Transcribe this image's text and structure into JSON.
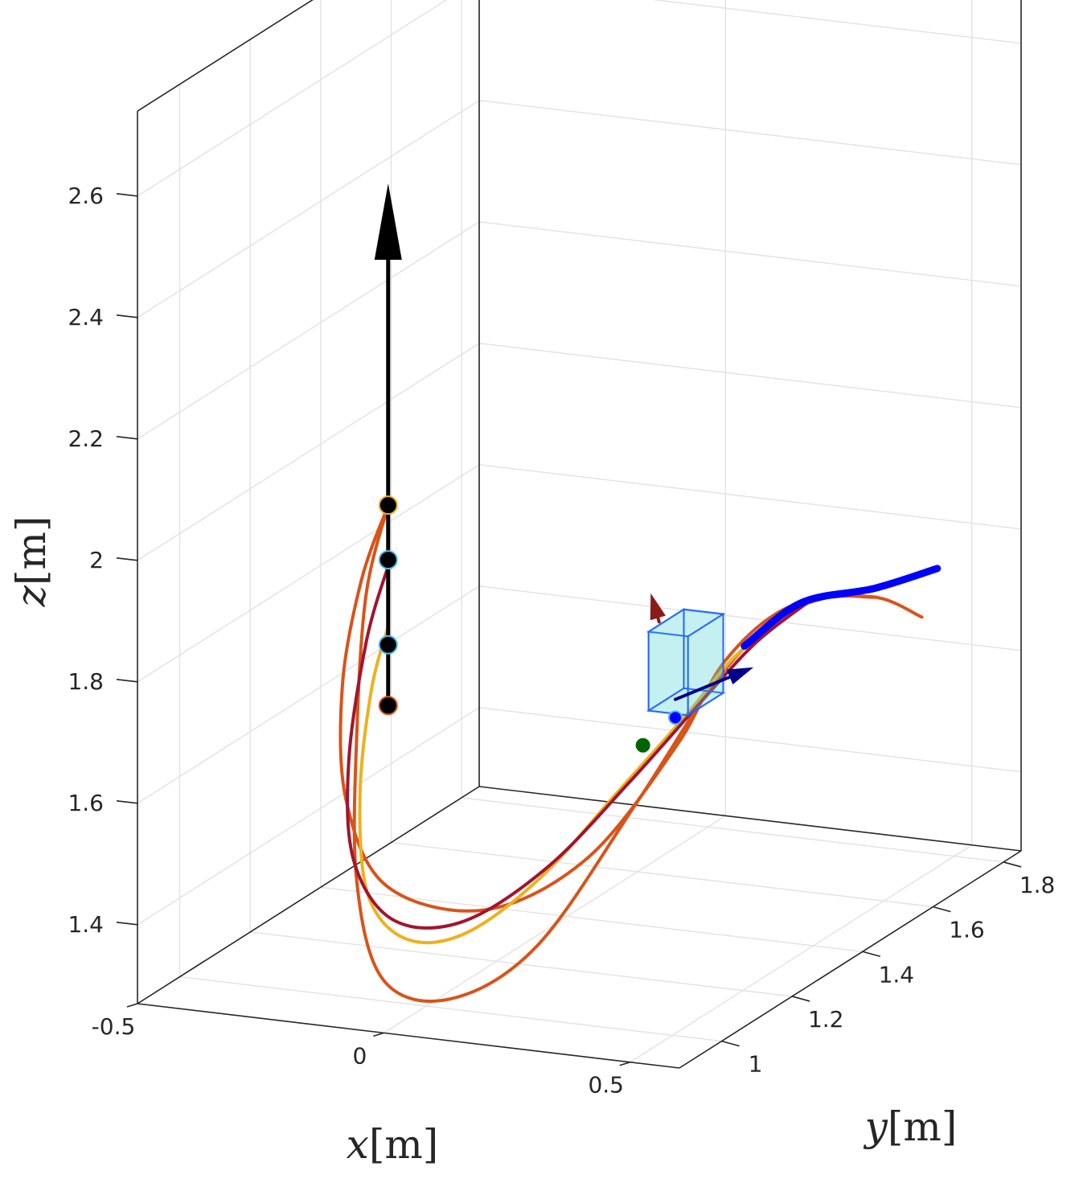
{
  "chart_data": {
    "type": "line",
    "projection": "3d",
    "title": "",
    "xlabel": {
      "var": "x",
      "unit": "[m]"
    },
    "ylabel": {
      "var": "y",
      "unit": "[m]"
    },
    "zlabel": {
      "var": "z",
      "unit": "[m]"
    },
    "xlim": [
      -0.5,
      0.6
    ],
    "ylim": [
      0.88,
      1.85
    ],
    "zlim": [
      1.27,
      2.74
    ],
    "grid": true,
    "box": true,
    "legend": "none",
    "x_ticks": [
      -0.5,
      0,
      0.5
    ],
    "x_tick_labels": [
      "-0.5",
      "0",
      "0.5"
    ],
    "y_ticks": [
      1.0,
      1.2,
      1.4,
      1.6,
      1.8
    ],
    "y_tick_labels": [
      "1",
      "1.2",
      "1.4",
      "1.6",
      "1.8"
    ],
    "z_ticks": [
      1.4,
      1.6,
      1.8,
      2.0,
      2.2,
      2.4,
      2.6
    ],
    "z_tick_labels": [
      "1.4",
      "1.6",
      "1.8",
      "2",
      "2.2",
      "2.4",
      "2.6"
    ],
    "colors": {
      "orange": "#d95319",
      "yellow": "#edb120",
      "crimson": "#a2142f",
      "blue": "#0000ff",
      "black": "#000000",
      "dark_green": "#006400",
      "cyan_box": "#4fd5d6",
      "box_edge": "#1f5fff",
      "dark_blue_arrow": "#00008b",
      "dark_red_arrow": "#8b1a1a",
      "marker_edge_light_blue": "#4dbeee"
    },
    "series": [
      {
        "style": "orange",
        "points": [
          [
            -0.22,
            1.2,
            2.0
          ],
          [
            -0.26,
            1.18,
            1.88
          ],
          [
            -0.27,
            1.14,
            1.72
          ],
          [
            -0.22,
            1.08,
            1.56
          ],
          [
            -0.08,
            1.0,
            1.46
          ],
          [
            0.12,
            1.0,
            1.44
          ],
          [
            0.27,
            1.08,
            1.51
          ],
          [
            0.35,
            1.22,
            1.65
          ],
          [
            0.35,
            1.36,
            1.74
          ],
          [
            0.38,
            1.5,
            1.78
          ],
          [
            0.46,
            1.62,
            1.76
          ],
          [
            0.52,
            1.68,
            1.71
          ]
        ]
      },
      {
        "style": "orange",
        "points": [
          [
            -0.22,
            1.2,
            2.0
          ],
          [
            -0.25,
            1.18,
            1.86
          ],
          [
            -0.24,
            1.14,
            1.66
          ],
          [
            -0.17,
            1.04,
            1.45
          ],
          [
            -0.03,
            0.92,
            1.34
          ],
          [
            0.12,
            0.9,
            1.33
          ],
          [
            0.24,
            0.98,
            1.4
          ],
          [
            0.32,
            1.15,
            1.58
          ],
          [
            0.36,
            1.34,
            1.73
          ],
          [
            0.39,
            1.52,
            1.78
          ],
          [
            0.47,
            1.62,
            1.76
          ]
        ]
      },
      {
        "style": "yellow",
        "points": [
          [
            -0.22,
            1.2,
            1.8
          ],
          [
            -0.24,
            1.18,
            1.7
          ],
          [
            -0.22,
            1.12,
            1.55
          ],
          [
            -0.14,
            1.03,
            1.43
          ],
          [
            -0.02,
            0.97,
            1.39
          ],
          [
            0.1,
            0.97,
            1.41
          ],
          [
            0.21,
            1.03,
            1.49
          ],
          [
            0.29,
            1.14,
            1.6
          ],
          [
            0.33,
            1.28,
            1.68
          ],
          [
            0.34,
            1.4,
            1.73
          ],
          [
            0.38,
            1.52,
            1.77
          ],
          [
            0.46,
            1.64,
            1.77
          ]
        ]
      },
      {
        "style": "crimson",
        "points": [
          [
            -0.22,
            1.2,
            1.9
          ],
          [
            -0.25,
            1.18,
            1.78
          ],
          [
            -0.25,
            1.13,
            1.6
          ],
          [
            -0.19,
            1.06,
            1.47
          ],
          [
            -0.06,
            0.99,
            1.41
          ],
          [
            0.08,
            0.99,
            1.42
          ],
          [
            0.21,
            1.05,
            1.5
          ],
          [
            0.3,
            1.16,
            1.61
          ],
          [
            0.35,
            1.3,
            1.7
          ],
          [
            0.37,
            1.42,
            1.75
          ],
          [
            0.4,
            1.52,
            1.78
          ]
        ]
      },
      {
        "style": "blue",
        "width": 9,
        "points": [
          [
            0.36,
            1.4,
            1.75
          ],
          [
            0.39,
            1.52,
            1.78
          ],
          [
            0.46,
            1.63,
            1.77
          ],
          [
            0.53,
            1.71,
            1.78
          ]
        ]
      }
    ],
    "arrows": [
      {
        "style": "black",
        "from": [
          -0.22,
          1.2,
          1.67
        ],
        "to": [
          -0.22,
          1.2,
          2.53
        ]
      },
      {
        "style": "dark_blue_arrow",
        "from": [
          0.32,
          1.26,
          1.71
        ],
        "to": [
          0.4,
          1.37,
          1.73
        ]
      },
      {
        "style": "dark_red_arrow",
        "from": [
          0.28,
          1.27,
          1.83
        ],
        "to": [
          0.27,
          1.26,
          1.88
        ]
      }
    ],
    "markers": [
      {
        "fill": "black",
        "edge": "yellow",
        "point": [
          -0.22,
          1.2,
          2.0
        ]
      },
      {
        "fill": "black",
        "edge": "marker_edge_light_blue",
        "point": [
          -0.22,
          1.2,
          1.91
        ]
      },
      {
        "fill": "black",
        "edge": "marker_edge_light_blue",
        "point": [
          -0.22,
          1.2,
          1.77
        ]
      },
      {
        "fill": "black",
        "edge": "orange",
        "point": [
          -0.22,
          1.2,
          1.67
        ]
      },
      {
        "fill": "dark_green",
        "edge": "dark_green",
        "point": [
          0.29,
          1.21,
          1.65
        ]
      },
      {
        "fill": "blue",
        "edge": "marker_edge_light_blue",
        "point": [
          0.32,
          1.26,
          1.68
        ]
      }
    ],
    "box_object": {
      "center": [
        0.32,
        1.29,
        1.76
      ],
      "size": [
        0.08,
        0.1,
        0.13
      ],
      "face_opacity": 0.45
    }
  }
}
